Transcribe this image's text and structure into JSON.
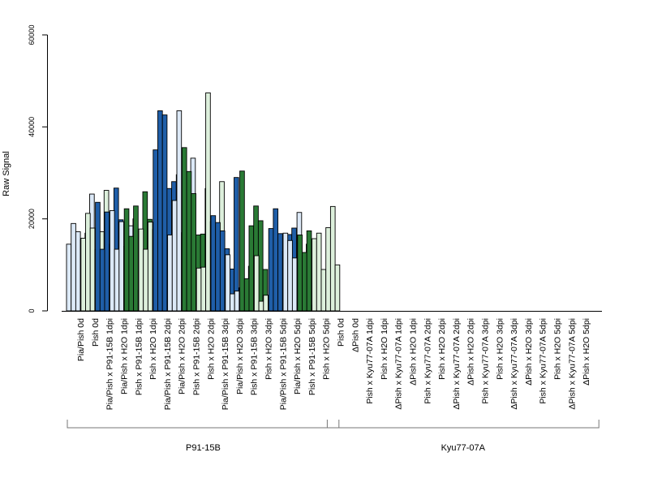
{
  "chart_data": {
    "type": "bar",
    "ylabel": "Raw Signal",
    "ylim": [
      0,
      60000
    ],
    "yticks": [
      0,
      20000,
      40000,
      60000
    ],
    "groups": [
      {
        "label": "P91-15B",
        "categories": [
          "Pia/Pish 0d",
          "Pish 0d",
          "Pia/Pish x P91-15B 1dpi",
          "Pia/Pish x H2O 1dpi",
          "Pish x P91-15B 1dpi",
          "Pish x H2O 1dpi",
          "Pia/Pish x P91-15B 2dpi",
          "Pia/Pish x H2O 2dpi",
          "Pish x P91-15B 2dpi",
          "Pish x H2O 2dpi",
          "Pia/Pish x P91-15B 3dpi",
          "Pia/Pish x H2O 3dpi",
          "Pish x P91-15B 3dpi",
          "Pish x H2O 3dpi",
          "Pia/Pish x P91-15B 5dpi",
          "Pia/Pish x H2O 5dpi",
          "Pish x P91-15B 5dpi",
          "Pish x H2O 5dpi"
        ]
      },
      {
        "label": "Kyu77-07A",
        "categories": [
          "Pish 0d",
          "ΔPish 0d",
          "Pish x Kyu77-07A 1dpi",
          "Pish x H2O 1dpi",
          "ΔPish x Kyu77-07A 1dpi",
          "ΔPish x H2O 1dpi",
          "Pish x Kyu77-07A 2dpi",
          "Pish x H2O 2dpi",
          "ΔPish x Kyu77-07A 2dpi",
          "ΔPish x H2O 2dpi",
          "Pish x Kyu77-07A 3dpi",
          "Pish x H2O 3dpi",
          "ΔPish x Kyu77-07A 3dpi",
          "ΔPish x H2O 3dpi",
          "Pish x Kyu77-07A 5dpi",
          "Pish x H2O 5dpi",
          "ΔPish x Kyu77-07A 5dpi",
          "ΔPish x H2O 5dpi"
        ]
      }
    ],
    "bar_colors": [
      "#dce9f7",
      "#ddf0dc",
      "#1f5ea8",
      "#dce9f7",
      "#2a7a35",
      "#ddf0dc",
      "#1f5ea8",
      "#dce9f7",
      "#2a7a35",
      "#ddf0dc",
      "#1f5ea8",
      "#dce9f7",
      "#2a7a35",
      "#ddf0dc",
      "#1f5ea8",
      "#dce9f7",
      "#2a7a35",
      "#ddf0dc",
      "#ffff33",
      "#f4a6f0",
      "#f7a21b",
      "#ffff33",
      "#d7001f",
      "#f4a6f0",
      "#f7a21b",
      "#ffff33",
      "#d7001f",
      "#f4a6f0",
      "#f7a21b",
      "#ffff33",
      "#d7001f",
      "#f4a6f0",
      "#f7a21b",
      "#ffff33",
      "#d7001f",
      "#f4a6f0"
    ],
    "series": [
      {
        "values": [
          14500,
          15800,
          23600,
          21800,
          22200,
          17800,
          35000,
          16500,
          35500,
          9300,
          20700,
          12200,
          30400,
          12000,
          17900,
          16900,
          16500,
          15700
        ]
      },
      {
        "values": [
          19000,
          21200,
          13400,
          13400,
          16200,
          13400,
          43500,
          24000,
          30300,
          9500,
          19200,
          3700,
          7000,
          2100,
          22200,
          15300,
          12700,
          16900
        ]
      },
      {
        "values": [
          17200,
          18000,
          21500,
          19400,
          22800,
          19300,
          42600,
          43500,
          25500,
          47400,
          17400,
          4300,
          18500,
          3400,
          16800,
          11500,
          17400,
          9000
        ]
      },
      {
        "values": [
          15400,
          13300,
          14500,
          14000,
          4500,
          17700,
          26600,
          17000,
          16500,
          19400,
          13500,
          5000,
          22800,
          3400,
          13000,
          21400,
          1200,
          18100
        ]
      },
      {
        "values": [
          16900,
          17200,
          26700,
          18500,
          25900,
          15900,
          28100,
          4000,
          16700,
          4000,
          9100,
          4600,
          19600,
          6100,
          16600,
          4400,
          600,
          22700
        ]
      },
      {
        "values": [
          25400,
          26200,
          19800,
          20000,
          19900,
          18100,
          29600,
          33200,
          26600,
          28100,
          29000,
          9700,
          9000,
          5800,
          18000,
          14500,
          2300,
          10000
        ]
      }
    ]
  }
}
